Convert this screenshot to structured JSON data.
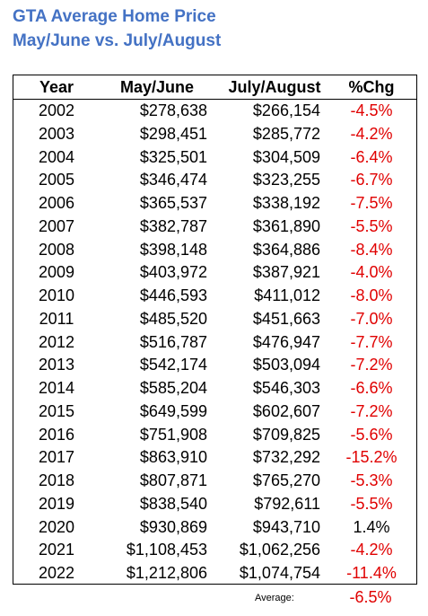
{
  "header": {
    "title": "GTA Average Home Price",
    "subtitle": "May/June vs. July/August"
  },
  "table": {
    "columns": [
      "Year",
      "May/June",
      "July/August",
      "%Chg"
    ],
    "rows": [
      [
        "2002",
        "$278,638",
        "$266,154",
        "-4.5%"
      ],
      [
        "2003",
        "$298,451",
        "$285,772",
        "-4.2%"
      ],
      [
        "2004",
        "$325,501",
        "$304,509",
        "-6.4%"
      ],
      [
        "2005",
        "$346,474",
        "$323,255",
        "-6.7%"
      ],
      [
        "2006",
        "$365,537",
        "$338,192",
        "-7.5%"
      ],
      [
        "2007",
        "$382,787",
        "$361,890",
        "-5.5%"
      ],
      [
        "2008",
        "$398,148",
        "$364,886",
        "-8.4%"
      ],
      [
        "2009",
        "$403,972",
        "$387,921",
        "-4.0%"
      ],
      [
        "2010",
        "$446,593",
        "$411,012",
        "-8.0%"
      ],
      [
        "2011",
        "$485,520",
        "$451,663",
        "-7.0%"
      ],
      [
        "2012",
        "$516,787",
        "$476,947",
        "-7.7%"
      ],
      [
        "2013",
        "$542,174",
        "$503,094",
        "-7.2%"
      ],
      [
        "2014",
        "$585,204",
        "$546,303",
        "-6.6%"
      ],
      [
        "2015",
        "$649,599",
        "$602,607",
        "-7.2%"
      ],
      [
        "2016",
        "$751,908",
        "$709,825",
        "-5.6%"
      ],
      [
        "2017",
        "$863,910",
        "$732,292",
        "-15.2%"
      ],
      [
        "2018",
        "$807,871",
        "$765,270",
        "-5.3%"
      ],
      [
        "2019",
        "$838,540",
        "$792,611",
        "-5.5%"
      ],
      [
        "2020",
        "$930,869",
        "$943,710",
        "1.4%"
      ],
      [
        "2021",
        "$1,108,453",
        "$1,062,256",
        "-4.2%"
      ],
      [
        "2022",
        "$1,212,806",
        "$1,074,754",
        "-11.4%"
      ]
    ],
    "average_label": "Average:",
    "average_value": "-6.5%"
  }
}
